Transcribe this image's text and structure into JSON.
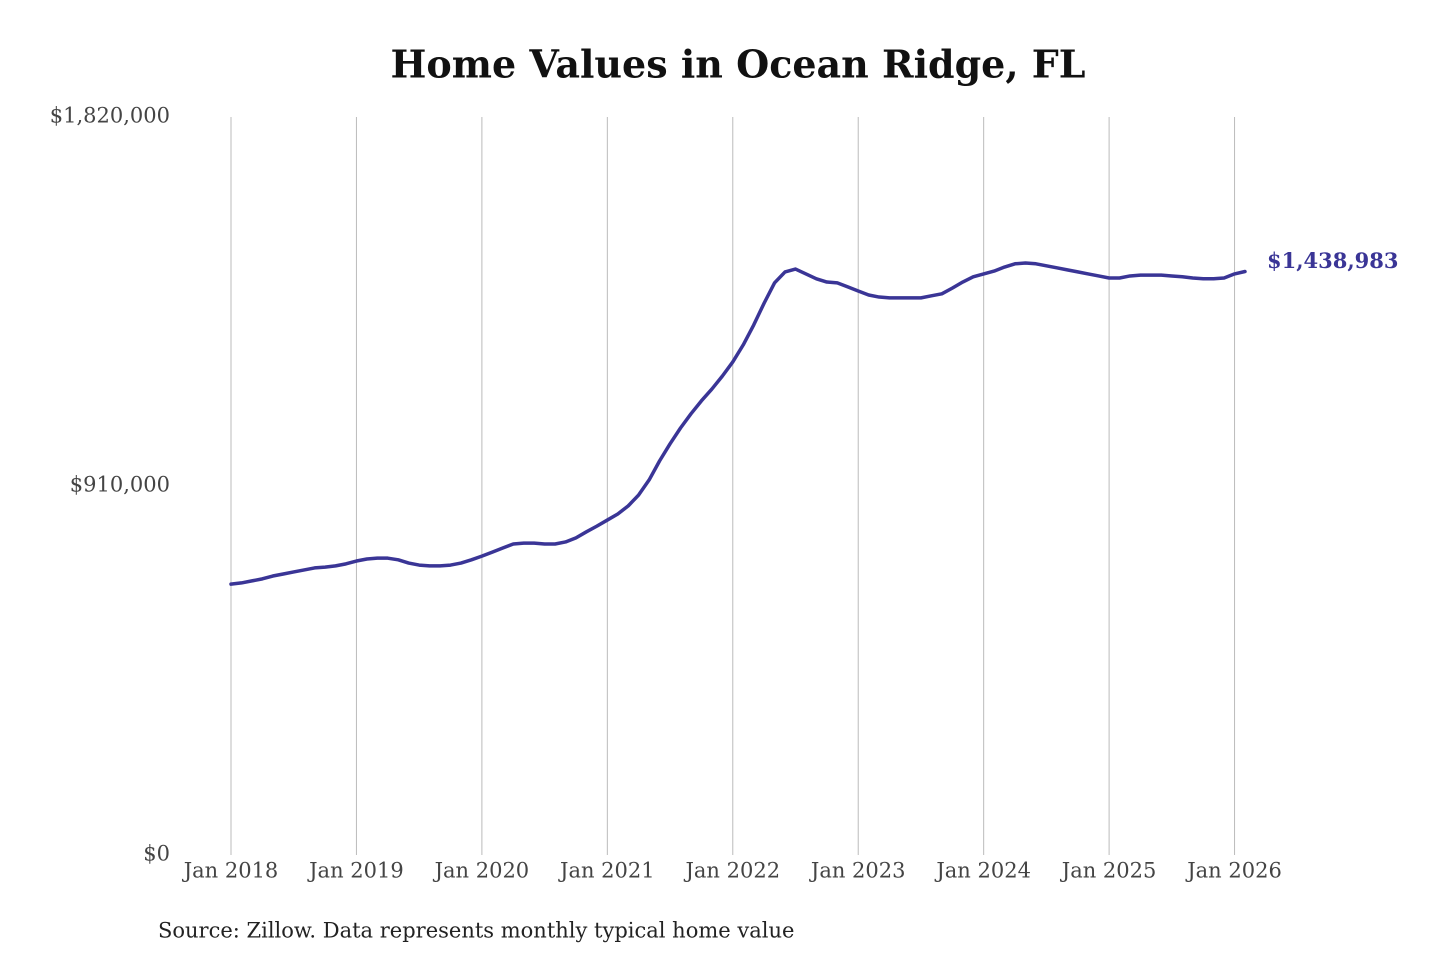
{
  "chart_data": {
    "type": "line",
    "title": "Home Values in Ocean Ridge, FL",
    "source": "Source: Zillow. Data represents monthly typical home value",
    "color": "#3a3596",
    "x": [
      "2018-01",
      "2018-02",
      "2018-03",
      "2018-04",
      "2018-05",
      "2018-06",
      "2018-07",
      "2018-08",
      "2018-09",
      "2018-10",
      "2018-11",
      "2018-12",
      "2019-01",
      "2019-02",
      "2019-03",
      "2019-04",
      "2019-05",
      "2019-06",
      "2019-07",
      "2019-08",
      "2019-09",
      "2019-10",
      "2019-11",
      "2019-12",
      "2020-01",
      "2020-02",
      "2020-03",
      "2020-04",
      "2020-05",
      "2020-06",
      "2020-07",
      "2020-08",
      "2020-09",
      "2020-10",
      "2020-11",
      "2020-12",
      "2021-01",
      "2021-02",
      "2021-03",
      "2021-04",
      "2021-05",
      "2021-06",
      "2021-07",
      "2021-08",
      "2021-09",
      "2021-10",
      "2021-11",
      "2021-12",
      "2022-01",
      "2022-02",
      "2022-03",
      "2022-04",
      "2022-05",
      "2022-06",
      "2022-07",
      "2022-08",
      "2022-09",
      "2022-10",
      "2022-11",
      "2022-12",
      "2023-01",
      "2023-02",
      "2023-03",
      "2023-04",
      "2023-05",
      "2023-06",
      "2023-07",
      "2023-08",
      "2023-09",
      "2023-10",
      "2023-11",
      "2023-12",
      "2024-01",
      "2024-02",
      "2024-03",
      "2024-04",
      "2024-05",
      "2024-06",
      "2024-07",
      "2024-08",
      "2024-09",
      "2024-10",
      "2024-11",
      "2024-12",
      "2025-01",
      "2025-02",
      "2025-03",
      "2025-04",
      "2025-05",
      "2025-06",
      "2025-07",
      "2025-08",
      "2025-09",
      "2025-10",
      "2025-11",
      "2025-12",
      "2026-01",
      "2026-02"
    ],
    "values": [
      668000,
      671000,
      676000,
      681000,
      688000,
      693000,
      698000,
      703000,
      708000,
      710000,
      713000,
      718000,
      725000,
      730000,
      732000,
      732000,
      728000,
      720000,
      715000,
      713000,
      713000,
      715000,
      720000,
      728000,
      737000,
      747000,
      757000,
      767000,
      769000,
      769000,
      767000,
      767000,
      772000,
      782000,
      797000,
      811000,
      826000,
      841000,
      861000,
      888000,
      925000,
      972000,
      1014000,
      1053000,
      1088000,
      1120000,
      1149000,
      1181000,
      1216000,
      1258000,
      1307000,
      1361000,
      1411000,
      1438000,
      1445000,
      1433000,
      1421000,
      1413000,
      1411000,
      1401000,
      1391000,
      1381000,
      1376000,
      1374000,
      1374000,
      1374000,
      1374000,
      1379000,
      1384000,
      1398000,
      1413000,
      1426000,
      1433000,
      1440000,
      1450000,
      1458000,
      1460000,
      1458000,
      1453000,
      1448000,
      1443000,
      1438000,
      1433000,
      1428000,
      1423000,
      1423000,
      1428000,
      1430000,
      1430000,
      1430000,
      1428000,
      1426000,
      1423000,
      1421000,
      1421000,
      1423000,
      1433000,
      1438983
    ],
    "last_value_label": "$1,438,983",
    "xlim": [
      "2018-01",
      "2026-02"
    ],
    "xticks": [
      {
        "value": "2018-01",
        "label": "Jan 2018"
      },
      {
        "value": "2019-01",
        "label": "Jan 2019"
      },
      {
        "value": "2020-01",
        "label": "Jan 2020"
      },
      {
        "value": "2021-01",
        "label": "Jan 2021"
      },
      {
        "value": "2022-01",
        "label": "Jan 2022"
      },
      {
        "value": "2023-01",
        "label": "Jan 2023"
      },
      {
        "value": "2024-01",
        "label": "Jan 2024"
      },
      {
        "value": "2025-01",
        "label": "Jan 2025"
      },
      {
        "value": "2026-01",
        "label": "Jan 2026"
      }
    ],
    "ylim": [
      0,
      1820000
    ],
    "yticks": [
      {
        "value": 0,
        "label": "$0"
      },
      {
        "value": 910000,
        "label": "$910,000"
      },
      {
        "value": 1820000,
        "label": "$1,820,000"
      }
    ],
    "grid": "x"
  }
}
